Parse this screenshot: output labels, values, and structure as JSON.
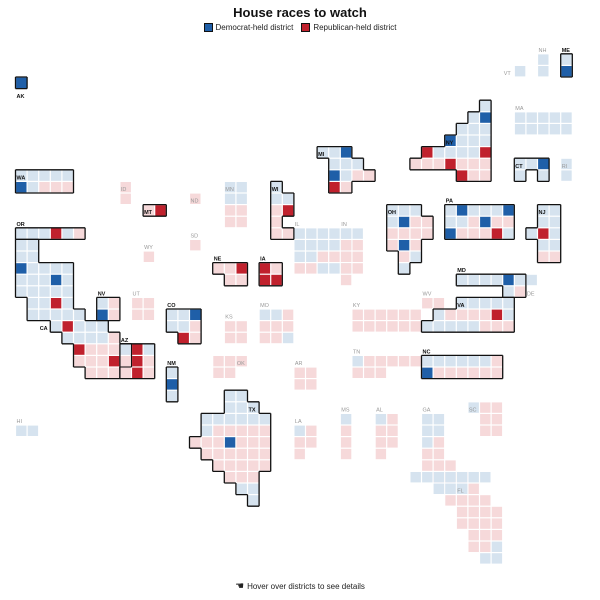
{
  "title": "House races to watch",
  "legend": [
    {
      "label": "Democrat-held district",
      "color": "#1f5fa8"
    },
    {
      "label": "Republican-held district",
      "color": "#c0212d"
    }
  ],
  "colors": {
    "dem_held": "#1f5fa8",
    "rep_held": "#c0212d",
    "lean_dem": "#d6e3ef",
    "lean_rep": "#f6d9da",
    "watch_outline": "#111111",
    "label_watch": "#111111",
    "label_other": "#999999"
  },
  "hint": {
    "icon": "pointer-hand-icon",
    "text": "Hover over districts to see details"
  },
  "states": [
    {
      "abbr": "AK",
      "watch": true,
      "counts": {
        "dem": 1
      }
    },
    {
      "abbr": "ME",
      "watch": true,
      "counts": {
        "dem": 1,
        "lean_dem": 1
      }
    },
    {
      "abbr": "NH",
      "watch": false,
      "counts": {
        "lean_dem": 2
      }
    },
    {
      "abbr": "VT",
      "watch": false,
      "counts": {
        "lean_dem": 1
      }
    },
    {
      "abbr": "MA",
      "watch": false,
      "counts": {
        "lean_dem": 9
      }
    },
    {
      "abbr": "NY",
      "watch": true,
      "counts": {
        "dem": 2,
        "rep": 4,
        "lean_dem": 12,
        "lean_rep": 8
      }
    },
    {
      "abbr": "MI",
      "watch": true,
      "counts": {
        "dem": 2,
        "rep": 1,
        "lean_dem": 6,
        "lean_rep": 4
      }
    },
    {
      "abbr": "CT",
      "watch": true,
      "counts": {
        "dem": 1,
        "lean_dem": 4
      }
    },
    {
      "abbr": "RI",
      "watch": false,
      "counts": {
        "lean_dem": 2
      }
    },
    {
      "abbr": "WA",
      "watch": true,
      "counts": {
        "dem": 1,
        "lean_dem": 6,
        "lean_rep": 3
      }
    },
    {
      "abbr": "ID",
      "watch": false,
      "counts": {
        "lean_rep": 2
      }
    },
    {
      "abbr": "MT",
      "watch": true,
      "counts": {
        "rep": 1,
        "lean_rep": 1
      }
    },
    {
      "abbr": "ND",
      "watch": false,
      "counts": {
        "lean_rep": 1
      }
    },
    {
      "abbr": "MN",
      "watch": false,
      "counts": {
        "lean_dem": 4,
        "lean_rep": 4
      }
    },
    {
      "abbr": "WI",
      "watch": true,
      "counts": {
        "rep": 1,
        "lean_dem": 3,
        "lean_rep": 4
      }
    },
    {
      "abbr": "OH",
      "watch": true,
      "counts": {
        "dem": 2,
        "lean_dem": 4,
        "lean_rep": 9
      }
    },
    {
      "abbr": "PA",
      "watch": true,
      "counts": {
        "dem": 4,
        "rep": 1,
        "lean_dem": 6,
        "lean_rep": 6
      }
    },
    {
      "abbr": "NJ",
      "watch": true,
      "counts": {
        "rep": 1,
        "lean_dem": 8,
        "lean_rep": 3
      }
    },
    {
      "abbr": "OR",
      "watch": true,
      "counts": {
        "rep": 1,
        "lean_dem": 4,
        "lean_rep": 1
      }
    },
    {
      "abbr": "WY",
      "watch": false,
      "counts": {
        "lean_rep": 1
      }
    },
    {
      "abbr": "SD",
      "watch": false,
      "counts": {
        "lean_rep": 1
      }
    },
    {
      "abbr": "IL",
      "watch": false,
      "counts": {
        "lean_dem": 12,
        "lean_rep": 5
      }
    },
    {
      "abbr": "IN",
      "watch": false,
      "counts": {
        "lean_dem": 2,
        "lean_rep": 7
      }
    },
    {
      "abbr": "NE",
      "watch": true,
      "counts": {
        "rep": 1,
        "lean_rep": 2
      }
    },
    {
      "abbr": "IA",
      "watch": true,
      "counts": {
        "rep": 3,
        "lean_rep": 1
      }
    },
    {
      "abbr": "MD",
      "watch": true,
      "counts": {
        "dem": 1,
        "lean_dem": 6,
        "lean_rep": 1
      }
    },
    {
      "abbr": "DE",
      "watch": false,
      "counts": {
        "lean_dem": 1
      }
    },
    {
      "abbr": "NV",
      "watch": true,
      "counts": {
        "dem": 1,
        "lean_dem": 1,
        "lean_rep": 2
      }
    },
    {
      "abbr": "UT",
      "watch": false,
      "counts": {
        "lean_rep": 4
      }
    },
    {
      "abbr": "CO",
      "watch": true,
      "counts": {
        "dem": 1,
        "rep": 1,
        "lean_dem": 4,
        "lean_rep": 2
      }
    },
    {
      "abbr": "KS",
      "watch": false,
      "counts": {
        "lean_rep": 4
      }
    },
    {
      "abbr": "MO",
      "watch": false,
      "counts": {
        "lean_dem": 2,
        "lean_rep": 6
      }
    },
    {
      "abbr": "KY",
      "watch": false,
      "counts": {
        "lean_rep": 6
      }
    },
    {
      "abbr": "WV",
      "watch": false,
      "counts": {
        "lean_rep": 2
      }
    },
    {
      "abbr": "VA",
      "watch": true,
      "counts": {
        "rep": 1,
        "lean_dem": 6,
        "lean_rep": 4
      }
    },
    {
      "abbr": "CA",
      "watch": true,
      "counts": {
        "dem": 2,
        "rep": 4,
        "lean_dem": 33,
        "lean_rep": 12
      }
    },
    {
      "abbr": "AZ",
      "watch": true,
      "counts": {
        "rep": 3,
        "lean_dem": 2,
        "lean_rep": 4
      }
    },
    {
      "abbr": "NM",
      "watch": true,
      "counts": {
        "dem": 1,
        "lean_dem": 2
      }
    },
    {
      "abbr": "OK",
      "watch": false,
      "counts": {
        "lean_rep": 5
      }
    },
    {
      "abbr": "AR",
      "watch": false,
      "counts": {
        "lean_rep": 4
      }
    },
    {
      "abbr": "TN",
      "watch": false,
      "counts": {
        "lean_dem": 1,
        "lean_rep": 8
      }
    },
    {
      "abbr": "NC",
      "watch": true,
      "counts": {
        "dem": 1,
        "lean_dem": 6,
        "lean_rep": 7
      }
    },
    {
      "abbr": "HI",
      "watch": false,
      "counts": {
        "lean_dem": 2
      }
    },
    {
      "abbr": "TX",
      "watch": true,
      "counts": {
        "dem": 1,
        "lean_dem": 12,
        "lean_rep": 25
      }
    },
    {
      "abbr": "LA",
      "watch": false,
      "counts": {
        "lean_dem": 1,
        "lean_rep": 5
      }
    },
    {
      "abbr": "MS",
      "watch": false,
      "counts": {
        "lean_dem": 1,
        "lean_rep": 3
      }
    },
    {
      "abbr": "AL",
      "watch": false,
      "counts": {
        "lean_dem": 1,
        "lean_rep": 6
      }
    },
    {
      "abbr": "GA",
      "watch": false,
      "counts": {
        "lean_dem": 5,
        "lean_rep": 9
      }
    },
    {
      "abbr": "SC",
      "watch": false,
      "counts": {
        "lean_dem": 1,
        "lean_rep": 6
      }
    },
    {
      "abbr": "FL",
      "watch": false,
      "counts": {
        "lean_dem": 10,
        "lean_rep": 18
      }
    }
  ]
}
